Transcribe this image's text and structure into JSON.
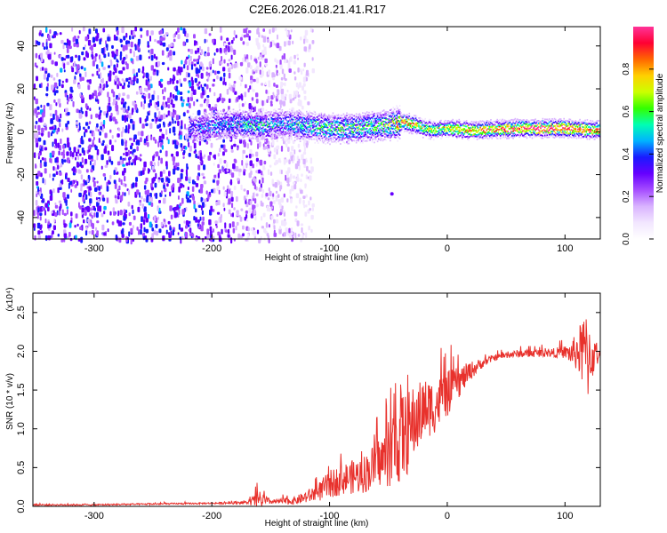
{
  "title": "C2E6.2026.018.21.41.R17",
  "chart_data": [
    {
      "id": "spectrogram",
      "type": "heatmap",
      "xlabel": "Height of straight line (km)",
      "ylabel": "Frequency (Hz)",
      "xlim": [
        -352,
        130
      ],
      "ylim": [
        -50,
        49
      ],
      "xticks": [
        -300,
        -200,
        -100,
        0,
        100
      ],
      "yticks": [
        -40,
        -20,
        0,
        20,
        40
      ],
      "colorbar": {
        "label": "Normalized spectral amplitude",
        "range": [
          0,
          1
        ],
        "ticks": [
          0.0,
          0.2,
          0.4,
          0.6,
          0.8
        ],
        "colors": [
          "#ffffff",
          "#f2e6ff",
          "#d9b3ff",
          "#a64dff",
          "#6600ff",
          "#1a1aff",
          "#00b3ff",
          "#00ffb3",
          "#33ff00",
          "#ccff00",
          "#ffd000",
          "#ff6600",
          "#ff0033",
          "#ff3399"
        ]
      },
      "ridge": {
        "height_km": [
          -220,
          -200,
          -180,
          -160,
          -140,
          -120,
          -100,
          -80,
          -60,
          -45,
          -38,
          -30,
          -20,
          -10,
          0,
          20,
          60,
          100,
          130
        ],
        "frequency_hz": [
          2,
          3,
          4,
          3,
          4,
          3,
          2,
          2,
          3,
          4,
          5,
          4,
          2,
          1,
          2,
          1,
          2,
          2,
          1
        ],
        "peak_amplitude": [
          0.35,
          0.45,
          0.5,
          0.55,
          0.5,
          0.55,
          0.6,
          0.6,
          0.6,
          0.75,
          0.9,
          0.8,
          0.7,
          0.7,
          0.75,
          0.8,
          0.95,
          0.95,
          0.9
        ]
      },
      "noise_region_km": [
        -352,
        -130
      ],
      "outlier_point": {
        "height_km": -47,
        "frequency_hz": -29
      }
    },
    {
      "id": "snr",
      "type": "line",
      "title": "(x10⁴)",
      "xlabel": "Height of straight line (km)",
      "ylabel": "SNR (10 * v/v)",
      "xlim": [
        -352,
        130
      ],
      "ylim": [
        0,
        2.75
      ],
      "xticks": [
        -300,
        -200,
        -100,
        0,
        100
      ],
      "yticks": [
        0.0,
        0.5,
        1.0,
        1.5,
        2.0,
        2.5
      ],
      "series": [
        {
          "name": "SNR",
          "color": "#e8312c",
          "x": [
            -352,
            -300,
            -250,
            -200,
            -170,
            -160,
            -150,
            -130,
            -120,
            -110,
            -100,
            -90,
            -80,
            -70,
            -60,
            -50,
            -45,
            -40,
            -35,
            -30,
            -20,
            -10,
            0,
            10,
            20,
            30,
            40,
            50,
            60,
            70,
            80,
            90,
            100,
            105,
            110,
            115,
            120,
            125,
            130
          ],
          "y": [
            0.02,
            0.02,
            0.03,
            0.04,
            0.05,
            0.08,
            0.06,
            0.07,
            0.12,
            0.18,
            0.28,
            0.35,
            0.38,
            0.42,
            0.55,
            0.65,
            0.75,
            0.95,
            0.9,
            1.05,
            1.25,
            1.3,
            1.45,
            1.6,
            1.75,
            1.85,
            1.92,
            1.95,
            1.97,
            1.97,
            1.98,
            1.98,
            1.99,
            1.97,
            2.0,
            1.98,
            1.95,
            1.95,
            1.93
          ],
          "spread": [
            0.01,
            0.01,
            0.01,
            0.01,
            0.02,
            0.12,
            0.03,
            0.05,
            0.08,
            0.12,
            0.18,
            0.2,
            0.22,
            0.25,
            0.3,
            0.4,
            0.55,
            0.65,
            0.55,
            0.5,
            0.4,
            0.35,
            0.3,
            0.2,
            0.12,
            0.06,
            0.04,
            0.04,
            0.05,
            0.05,
            0.05,
            0.06,
            0.08,
            0.15,
            0.25,
            0.45,
            0.6,
            0.2,
            0.05
          ]
        }
      ]
    }
  ]
}
